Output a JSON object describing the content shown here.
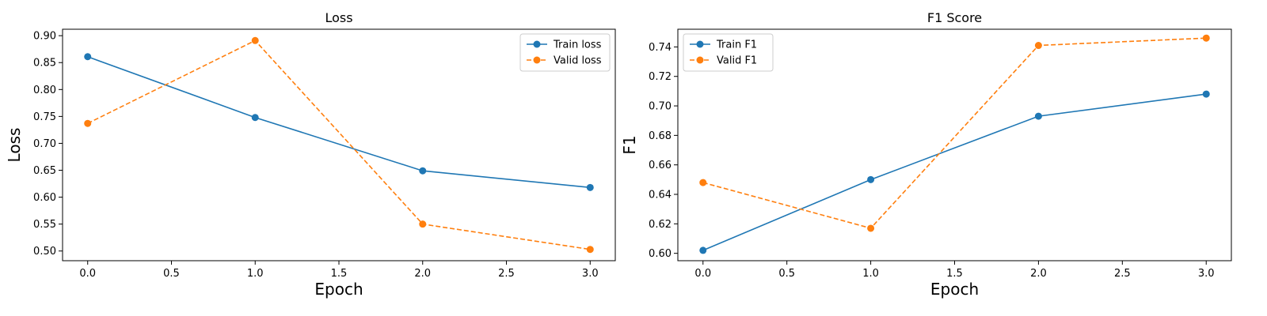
{
  "chart_data": [
    {
      "type": "line",
      "title": "Loss",
      "xlabel": "Epoch",
      "ylabel": "Loss",
      "x": [
        0,
        1,
        2,
        3
      ],
      "xlim": [
        -0.15,
        3.15
      ],
      "ylim": [
        0.482,
        0.912
      ],
      "xticks": [
        0,
        0.5,
        1,
        1.5,
        2,
        2.5,
        3
      ],
      "xtick_labels": [
        "0.0",
        "0.5",
        "1.0",
        "1.5",
        "2.0",
        "2.5",
        "3.0"
      ],
      "yticks": [
        0.5,
        0.55,
        0.6,
        0.65,
        0.7,
        0.75,
        0.8,
        0.85,
        0.9
      ],
      "ytick_labels": [
        "0.50",
        "0.55",
        "0.60",
        "0.65",
        "0.70",
        "0.75",
        "0.80",
        "0.85",
        "0.90"
      ],
      "grid": false,
      "legend_position": "top-right",
      "series": [
        {
          "name": "Train loss",
          "values": [
            0.861,
            0.748,
            0.649,
            0.618
          ],
          "color": "#1f77b4",
          "linestyle": "solid",
          "marker": "circle"
        },
        {
          "name": "Valid loss",
          "values": [
            0.737,
            0.891,
            0.55,
            0.503
          ],
          "color": "#ff7f0e",
          "linestyle": "dashed",
          "marker": "circle"
        }
      ]
    },
    {
      "type": "line",
      "title": "F1 Score",
      "xlabel": "Epoch",
      "ylabel": "F1",
      "x": [
        0,
        1,
        2,
        3
      ],
      "xlim": [
        -0.15,
        3.15
      ],
      "ylim": [
        0.595,
        0.752
      ],
      "xticks": [
        0,
        0.5,
        1,
        1.5,
        2,
        2.5,
        3
      ],
      "xtick_labels": [
        "0.0",
        "0.5",
        "1.0",
        "1.5",
        "2.0",
        "2.5",
        "3.0"
      ],
      "yticks": [
        0.6,
        0.62,
        0.64,
        0.66,
        0.68,
        0.7,
        0.72,
        0.74
      ],
      "ytick_labels": [
        "0.60",
        "0.62",
        "0.64",
        "0.66",
        "0.68",
        "0.70",
        "0.72",
        "0.74"
      ],
      "grid": false,
      "legend_position": "top-left",
      "series": [
        {
          "name": "Train F1",
          "values": [
            0.602,
            0.65,
            0.693,
            0.708
          ],
          "color": "#1f77b4",
          "linestyle": "solid",
          "marker": "circle"
        },
        {
          "name": "Valid F1",
          "values": [
            0.648,
            0.617,
            0.741,
            0.746
          ],
          "color": "#ff7f0e",
          "linestyle": "dashed",
          "marker": "circle"
        }
      ]
    }
  ]
}
